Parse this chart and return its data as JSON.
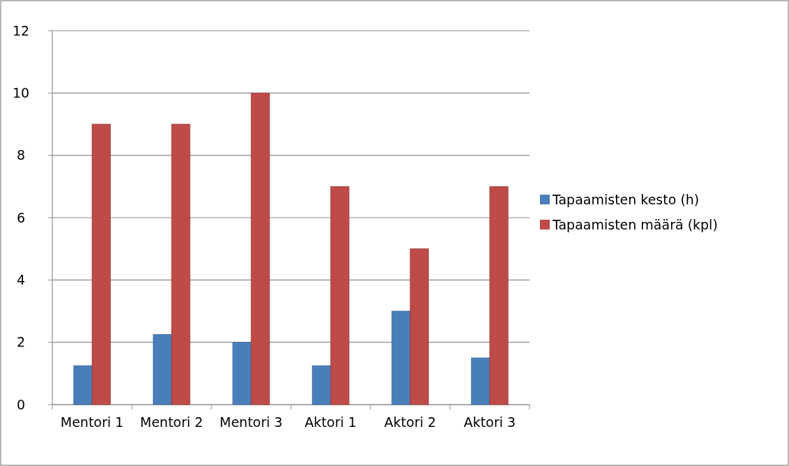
{
  "chart_data": {
    "type": "bar",
    "categories": [
      "Mentori 1",
      "Mentori 2",
      "Mentori 3",
      "Aktori 1",
      "Aktori 2",
      "Aktori 3"
    ],
    "series": [
      {
        "name": "Tapaamisten kesto (h)",
        "color": "#4a7ebb",
        "values": [
          1.25,
          2.25,
          2,
          1.25,
          3,
          1.5
        ]
      },
      {
        "name": "Tapaamisten määrä (kpl)",
        "color": "#be4b48",
        "values": [
          9,
          9,
          10,
          7,
          5,
          7
        ]
      }
    ],
    "ylim": [
      0,
      12
    ],
    "yticks": [
      0,
      2,
      4,
      6,
      8,
      10,
      12
    ],
    "grid": "y",
    "legend": "right"
  }
}
